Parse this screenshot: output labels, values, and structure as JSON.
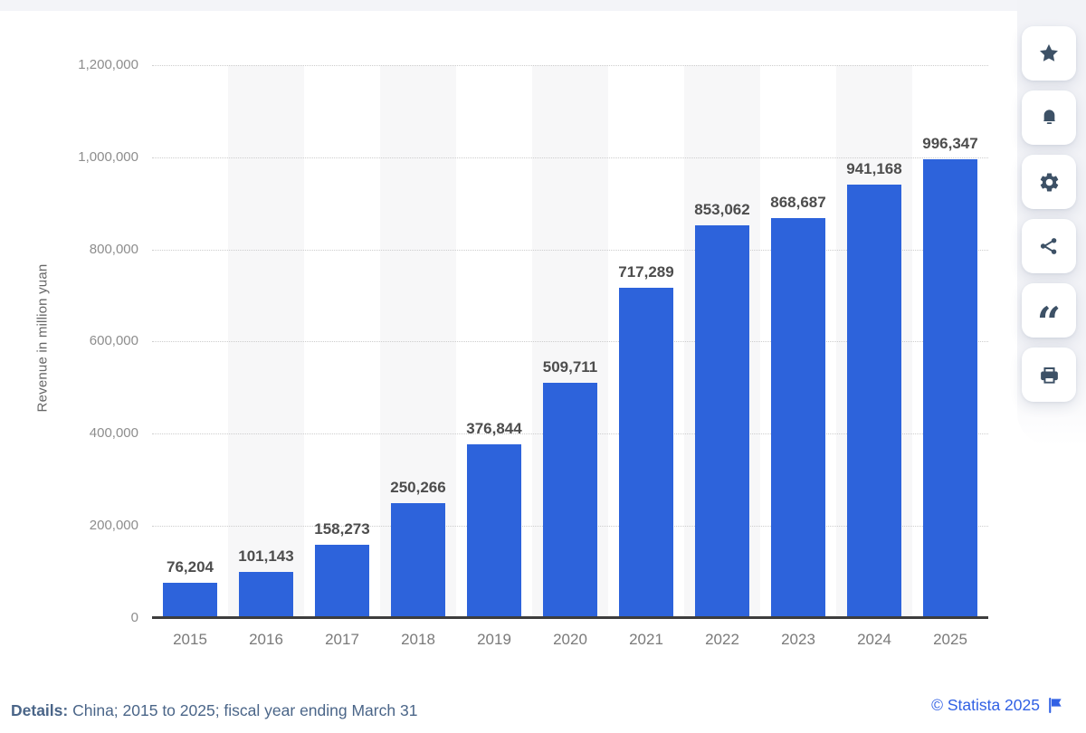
{
  "colors": {
    "bar_blue": "#2d63db",
    "statista_blue": "#3060e4",
    "icon_slate": "#3d5166",
    "band_gray": "#f7f7f8"
  },
  "chart_data": {
    "type": "bar",
    "title": "",
    "categories": [
      "2015",
      "2016",
      "2017",
      "2018",
      "2019",
      "2020",
      "2021",
      "2022",
      "2023",
      "2024",
      "2025"
    ],
    "values": [
      76204,
      101143,
      158273,
      250266,
      376844,
      509711,
      717289,
      853062,
      868687,
      941168,
      996347
    ],
    "value_labels": [
      "76,204",
      "101,143",
      "158,273",
      "250,266",
      "376,844",
      "509,711",
      "717,289",
      "853,062",
      "868,687",
      "941,168",
      "996,347"
    ],
    "xlabel": "",
    "ylabel": "Revenue in million yuan",
    "ylim": [
      0,
      1200000
    ],
    "ytick_values": [
      0,
      200000,
      400000,
      600000,
      800000,
      1000000,
      1200000
    ],
    "ytick_labels": [
      "0",
      "200,000",
      "400,000",
      "600,000",
      "800,000",
      "1,000,000",
      "1,200,000"
    ],
    "grid": "horizontal-dotted",
    "legend": "none",
    "column_shading": "alternate columns shaded starting 2016"
  },
  "toolbar": {
    "buttons": [
      {
        "icon": "star-icon",
        "action": "favorite"
      },
      {
        "icon": "bell-icon",
        "action": "notifications"
      },
      {
        "icon": "gear-icon",
        "action": "settings"
      },
      {
        "icon": "share-icon",
        "action": "share"
      },
      {
        "icon": "quote-icon",
        "action": "cite"
      },
      {
        "icon": "print-icon",
        "action": "print"
      }
    ]
  },
  "footer": {
    "details_label": "Details:",
    "details_text": " China; 2015 to 2025; fiscal year ending March 31",
    "copyright": "© Statista 2025",
    "flag_icon": "report-flag"
  }
}
